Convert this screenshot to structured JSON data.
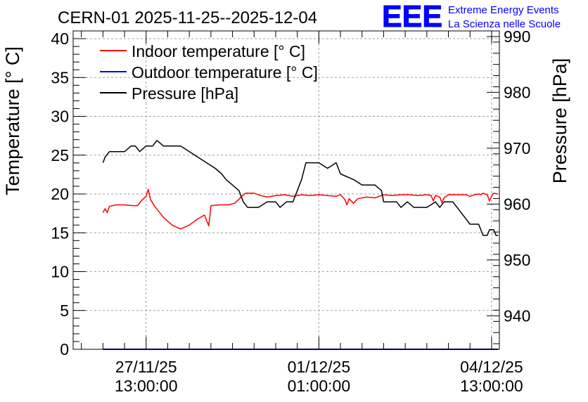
{
  "chart_data": {
    "type": "line",
    "title": "CERN-01 2025-11-25--2025-12-04",
    "ylabel": "Temperature [° C]",
    "ylabel_right": "Pressure [hPa]",
    "xlabel": "",
    "ylim": [
      0,
      41
    ],
    "ylim_right": [
      934,
      991
    ],
    "xlim": [
      -1.69,
      8.18
    ],
    "x_unit": "days since 2025-11-27 13:00:00",
    "y_ticks": [
      0,
      5,
      10,
      15,
      20,
      25,
      30,
      35,
      40
    ],
    "y_right_ticks": [
      940,
      950,
      960,
      970,
      980,
      990
    ],
    "x_ticks": [
      {
        "x": 0,
        "line1": "27/11/25",
        "line2": "13:00:00"
      },
      {
        "x": 4,
        "line1": "01/12/25",
        "line2": "01:00:00"
      },
      {
        "x": 8,
        "line1": "04/12/25",
        "line2": "13:00:00"
      }
    ],
    "grid": true,
    "legend_position": "top-left",
    "series": [
      {
        "name": "Indoor temperature [° C]",
        "color": "#ff0000",
        "axis": "left",
        "points": [
          [
            -1.0,
            17.6
          ],
          [
            -0.95,
            18.1
          ],
          [
            -0.9,
            17.6
          ],
          [
            -0.85,
            18.4
          ],
          [
            -0.7,
            18.6
          ],
          [
            -0.5,
            18.6
          ],
          [
            -0.3,
            18.5
          ],
          [
            -0.2,
            18.5
          ],
          [
            -0.1,
            19.2
          ],
          [
            0.0,
            19.7
          ],
          [
            0.05,
            20.6
          ],
          [
            0.1,
            19.3
          ],
          [
            0.2,
            18.4
          ],
          [
            0.4,
            17.0
          ],
          [
            0.6,
            16.0
          ],
          [
            0.75,
            15.6
          ],
          [
            0.8,
            15.5
          ],
          [
            1.0,
            16.0
          ],
          [
            1.2,
            16.8
          ],
          [
            1.35,
            17.3
          ],
          [
            1.45,
            15.9
          ],
          [
            1.5,
            18.5
          ],
          [
            1.7,
            18.6
          ],
          [
            1.9,
            18.6
          ],
          [
            2.05,
            18.8
          ],
          [
            2.2,
            19.6
          ],
          [
            2.3,
            20.1
          ],
          [
            2.5,
            20.1
          ],
          [
            2.65,
            19.8
          ],
          [
            2.8,
            19.6
          ],
          [
            3.0,
            19.8
          ],
          [
            3.2,
            19.9
          ],
          [
            3.4,
            19.7
          ],
          [
            3.6,
            19.9
          ],
          [
            3.8,
            19.8
          ],
          [
            4.0,
            19.9
          ],
          [
            4.2,
            19.8
          ],
          [
            4.4,
            19.7
          ],
          [
            4.5,
            19.9
          ],
          [
            4.6,
            19.3
          ],
          [
            4.65,
            18.6
          ],
          [
            4.7,
            19.4
          ],
          [
            4.8,
            18.8
          ],
          [
            4.9,
            19.4
          ],
          [
            5.1,
            19.6
          ],
          [
            5.3,
            19.5
          ],
          [
            5.5,
            19.9
          ],
          [
            5.7,
            19.8
          ],
          [
            5.9,
            19.9
          ],
          [
            6.1,
            19.9
          ],
          [
            6.3,
            19.8
          ],
          [
            6.5,
            19.9
          ],
          [
            6.6,
            19.8
          ],
          [
            6.65,
            19.1
          ],
          [
            6.7,
            19.8
          ],
          [
            6.8,
            19.6
          ],
          [
            6.85,
            18.9
          ],
          [
            6.9,
            19.5
          ],
          [
            7.0,
            19.9
          ],
          [
            7.2,
            19.9
          ],
          [
            7.4,
            19.9
          ],
          [
            7.5,
            19.7
          ],
          [
            7.6,
            19.9
          ],
          [
            7.7,
            20.0
          ],
          [
            7.75,
            19.9
          ],
          [
            7.8,
            20.1
          ],
          [
            7.9,
            19.9
          ],
          [
            7.95,
            19.1
          ],
          [
            8.0,
            19.7
          ],
          [
            8.05,
            20.1
          ],
          [
            8.15,
            20.0
          ]
        ]
      },
      {
        "name": "Outdoor temperature [° C]",
        "color": "#0000ff",
        "axis": "left",
        "points": [
          [
            -1.0,
            0.0
          ],
          [
            8.15,
            0.0
          ]
        ]
      },
      {
        "name": "Pressure [hPa]",
        "color": "#000000",
        "axis": "right",
        "points": [
          [
            -1.0,
            967.4
          ],
          [
            -0.95,
            968.4
          ],
          [
            -0.85,
            969.4
          ],
          [
            -0.65,
            969.4
          ],
          [
            -0.5,
            969.4
          ],
          [
            -0.35,
            970.4
          ],
          [
            -0.25,
            970.4
          ],
          [
            -0.15,
            969.4
          ],
          [
            0.0,
            970.4
          ],
          [
            0.15,
            970.4
          ],
          [
            0.25,
            971.4
          ],
          [
            0.4,
            970.4
          ],
          [
            0.55,
            970.4
          ],
          [
            0.8,
            970.4
          ],
          [
            1.0,
            969.4
          ],
          [
            1.2,
            968.4
          ],
          [
            1.4,
            967.4
          ],
          [
            1.6,
            966.4
          ],
          [
            1.75,
            965.4
          ],
          [
            1.85,
            964.4
          ],
          [
            2.0,
            963.4
          ],
          [
            2.15,
            962.4
          ],
          [
            2.25,
            960.4
          ],
          [
            2.35,
            959.4
          ],
          [
            2.6,
            959.4
          ],
          [
            2.8,
            960.4
          ],
          [
            3.0,
            960.4
          ],
          [
            3.1,
            959.4
          ],
          [
            3.25,
            960.4
          ],
          [
            3.4,
            960.4
          ],
          [
            3.5,
            962.4
          ],
          [
            3.6,
            964.4
          ],
          [
            3.7,
            967.4
          ],
          [
            4.0,
            967.4
          ],
          [
            4.2,
            966.4
          ],
          [
            4.4,
            967.4
          ],
          [
            4.5,
            965.4
          ],
          [
            4.8,
            964.4
          ],
          [
            5.0,
            963.4
          ],
          [
            5.3,
            963.4
          ],
          [
            5.45,
            962.4
          ],
          [
            5.5,
            960.4
          ],
          [
            5.8,
            960.4
          ],
          [
            5.9,
            959.4
          ],
          [
            6.05,
            960.4
          ],
          [
            6.2,
            959.4
          ],
          [
            6.5,
            959.4
          ],
          [
            6.7,
            960.4
          ],
          [
            6.8,
            959.4
          ],
          [
            6.9,
            960.4
          ],
          [
            7.1,
            960.4
          ],
          [
            7.2,
            959.4
          ],
          [
            7.3,
            958.4
          ],
          [
            7.4,
            957.4
          ],
          [
            7.5,
            956.4
          ],
          [
            7.7,
            956.4
          ],
          [
            7.75,
            955.4
          ],
          [
            7.8,
            954.4
          ],
          [
            7.9,
            954.4
          ],
          [
            7.95,
            955.4
          ],
          [
            8.05,
            955.4
          ],
          [
            8.1,
            954.4
          ],
          [
            8.15,
            954.4
          ]
        ]
      }
    ]
  },
  "logo": {
    "mark": "EEE",
    "line1": "Extreme Energy Events",
    "line2": "La Scienza nelle Scuole",
    "color": "#0000ff"
  }
}
